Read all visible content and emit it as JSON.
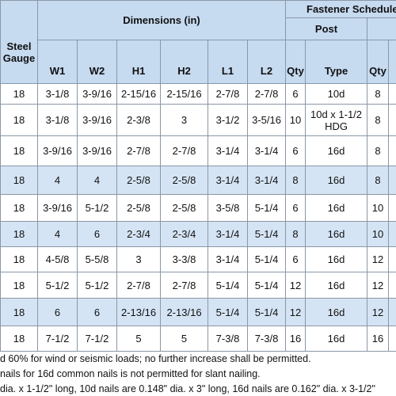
{
  "table": {
    "header": {
      "gauge": "Steel Gauge",
      "dimensions": "Dimensions (in)",
      "fastener": "Fastener Schedule",
      "post": "Post",
      "columns": [
        "W1",
        "W2",
        "H1",
        "H2",
        "L1",
        "L2",
        "Qty",
        "Type",
        "Qty"
      ]
    },
    "rows": [
      [
        "18",
        "3-1/8",
        "3-9/16",
        "2-15/16",
        "2-15/16",
        "2-7/8",
        "2-7/8",
        "6",
        "10d",
        "8"
      ],
      [
        "18",
        "3-1/8",
        "3-9/16",
        "2-3/8",
        "3",
        "3-1/2",
        "3-5/16",
        "10",
        "10d x 1-1/2 HDG",
        "8"
      ],
      [
        "18",
        "3-9/16",
        "3-9/16",
        "2-7/8",
        "2-7/8",
        "3-1/4",
        "3-1/4",
        "6",
        "16d",
        "8"
      ],
      [
        "18",
        "4",
        "4",
        "2-5/8",
        "2-5/8",
        "3-1/4",
        "3-1/4",
        "8",
        "16d",
        "8"
      ],
      [
        "18",
        "3-9/16",
        "5-1/2",
        "2-5/8",
        "2-5/8",
        "3-5/8",
        "5-1/4",
        "6",
        "16d",
        "10"
      ],
      [
        "18",
        "4",
        "6",
        "2-3/4",
        "2-3/4",
        "3-1/4",
        "5-1/4",
        "8",
        "16d",
        "10"
      ],
      [
        "18",
        "4-5/8",
        "5-5/8",
        "3",
        "3-3/8",
        "3-1/4",
        "5-1/4",
        "6",
        "16d",
        "12"
      ],
      [
        "18",
        "5-1/2",
        "5-1/2",
        "2-7/8",
        "2-7/8",
        "5-1/4",
        "5-1/4",
        "12",
        "16d",
        "12"
      ],
      [
        "18",
        "6",
        "6",
        "2-13/16",
        "2-13/16",
        "5-1/4",
        "5-1/4",
        "12",
        "16d",
        "12"
      ],
      [
        "18",
        "7-1/2",
        "7-1/2",
        "5",
        "5",
        "7-3/8",
        "7-3/8",
        "16",
        "16d",
        "16"
      ]
    ],
    "highlight_rows": [
      3,
      5,
      8
    ]
  },
  "footnotes": [
    "d 60% for wind or seismic loads; no further increase shall be permitted.",
    "nails for 16d common nails is not permitted for slant nailing.",
    "dia. x 1-1/2\" long, 10d nails are 0.148\" dia. x 3\" long, 16d nails are 0.162\" dia. x 3-1/2\""
  ]
}
